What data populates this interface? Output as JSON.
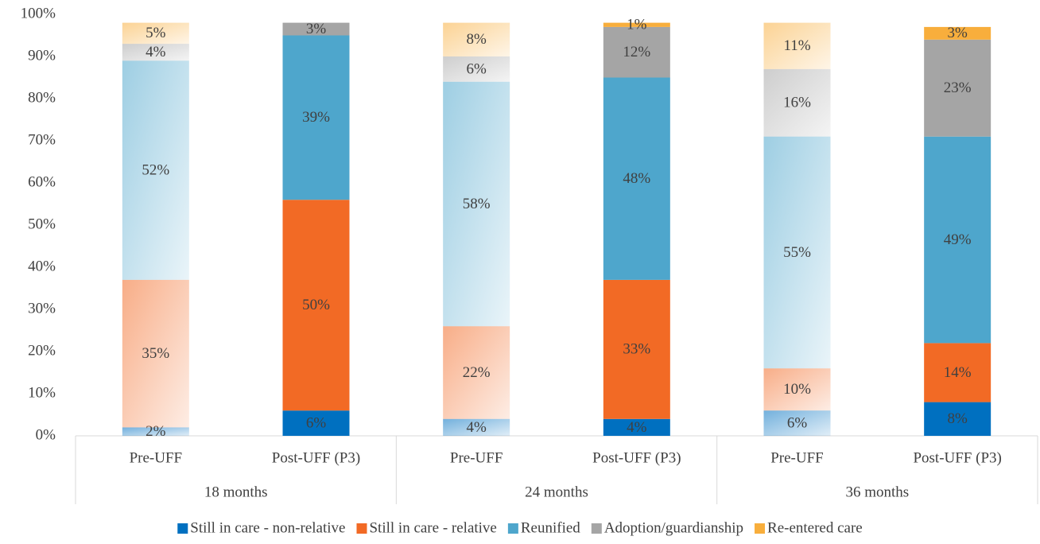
{
  "chart_data": {
    "type": "stacked_bar",
    "categories": [
      "Pre-UFF",
      "Post-UFF (P3)",
      "Pre-UFF",
      "Post-UFF (P3)",
      "Pre-UFF",
      "Post-UFF (P3)"
    ],
    "group_labels": [
      "18 months",
      "24 months",
      "36 months"
    ],
    "faded_categories": [
      true,
      false,
      true,
      false,
      true,
      false
    ],
    "series": [
      {
        "name": "Still in care - non-relative",
        "color": "#0070c0",
        "values": [
          2,
          6,
          4,
          4,
          6,
          8
        ],
        "value_labels": [
          "2%",
          "6%",
          "4%",
          "4%",
          "6%",
          "8%"
        ]
      },
      {
        "name": "Still in care - relative",
        "color": "#f26a25",
        "values": [
          35,
          50,
          22,
          33,
          10,
          14
        ],
        "value_labels": [
          "35%",
          "50%",
          "22%",
          "33%",
          "10%",
          "14%"
        ]
      },
      {
        "name": "Reunified",
        "color": "#4ea6cc",
        "values": [
          52,
          39,
          58,
          48,
          55,
          49
        ],
        "value_labels": [
          "52%",
          "39%",
          "58%",
          "48%",
          "55%",
          "49%"
        ]
      },
      {
        "name": "Adoption/guardianship",
        "color": "#a5a5a5",
        "values": [
          4,
          3,
          6,
          12,
          16,
          23
        ],
        "value_labels": [
          "4%",
          "3%",
          "6%",
          "12%",
          "16%",
          "23%"
        ]
      },
      {
        "name": "Re-entered care",
        "color": "#f8ae3c",
        "values": [
          5,
          null,
          8,
          1,
          11,
          3
        ],
        "value_labels": [
          "5%",
          null,
          "8%",
          "1%",
          "11%",
          "3%"
        ]
      }
    ],
    "ylim": [
      0,
      100
    ],
    "yticks": [
      {
        "value": 0,
        "label": "0%"
      },
      {
        "value": 10,
        "label": "10%"
      },
      {
        "value": 20,
        "label": "20%"
      },
      {
        "value": 30,
        "label": "30%"
      },
      {
        "value": 40,
        "label": "40%"
      },
      {
        "value": 50,
        "label": "50%"
      },
      {
        "value": 60,
        "label": "60%"
      },
      {
        "value": 70,
        "label": "70%"
      },
      {
        "value": 80,
        "label": "80%"
      },
      {
        "value": 90,
        "label": "90%"
      },
      {
        "value": 100,
        "label": "100%"
      }
    ],
    "legend": "bottom"
  }
}
